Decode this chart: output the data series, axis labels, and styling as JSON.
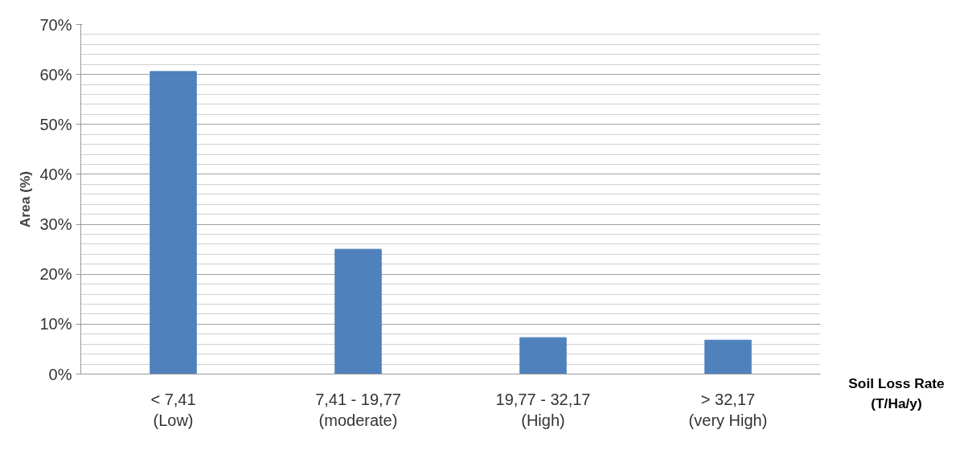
{
  "chart_data": {
    "type": "bar",
    "ylabel": "Area (%)",
    "xlabel": "Soil Loss Rate\n(T/Ha/y)",
    "categories": [
      "< 7,41\n(Low)",
      "7,41 - 19,77\n(moderate)",
      "19,77 - 32,17\n(High)",
      "> 32,17\n(very High)"
    ],
    "values": [
      60.6,
      25.0,
      7.3,
      6.8
    ],
    "color": "#4f81bd",
    "ylim": [
      0,
      70
    ],
    "yticks": [
      {
        "value": 0,
        "label": "0%"
      },
      {
        "value": 10,
        "label": "10%"
      },
      {
        "value": 20,
        "label": "20%"
      },
      {
        "value": 30,
        "label": "30%"
      },
      {
        "value": 40,
        "label": "40%"
      },
      {
        "value": 50,
        "label": "50%"
      },
      {
        "value": 60,
        "label": "60%"
      },
      {
        "value": 70,
        "label": "70%"
      }
    ],
    "grid": "y"
  }
}
